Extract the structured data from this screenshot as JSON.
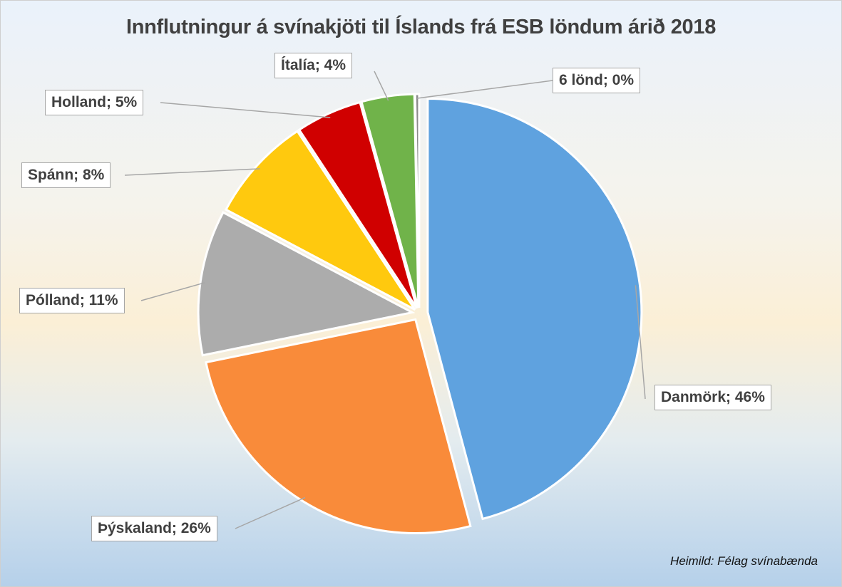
{
  "chart_data": {
    "type": "pie",
    "title": "Innflutningur á svínakjöti til Íslands frá ESB löndum árið 2018",
    "slices": [
      {
        "label": "Danmörk",
        "value": 46,
        "text": "Danmörk; 46%",
        "color": "#5fa2df"
      },
      {
        "label": "Þýskaland",
        "value": 26,
        "text": "Þýskaland; 26%",
        "color": "#f98b3a"
      },
      {
        "label": "Pólland",
        "value": 11,
        "text": "Pólland; 11%",
        "color": "#acacac"
      },
      {
        "label": "Spánn",
        "value": 8,
        "text": "Spánn; 8%",
        "color": "#ffc90e"
      },
      {
        "label": "Holland",
        "value": 5,
        "text": "Holland; 5%",
        "color": "#d00000"
      },
      {
        "label": "Ítalía",
        "value": 4,
        "text": "Ítalía; 4%",
        "color": "#70b34a"
      },
      {
        "label": "6 lönd",
        "value": 0.3,
        "text": "6 lönd; 0%",
        "color": "#8a8a8a"
      }
    ],
    "legend": "none",
    "source": "Heimild: Félag svínabænda"
  }
}
